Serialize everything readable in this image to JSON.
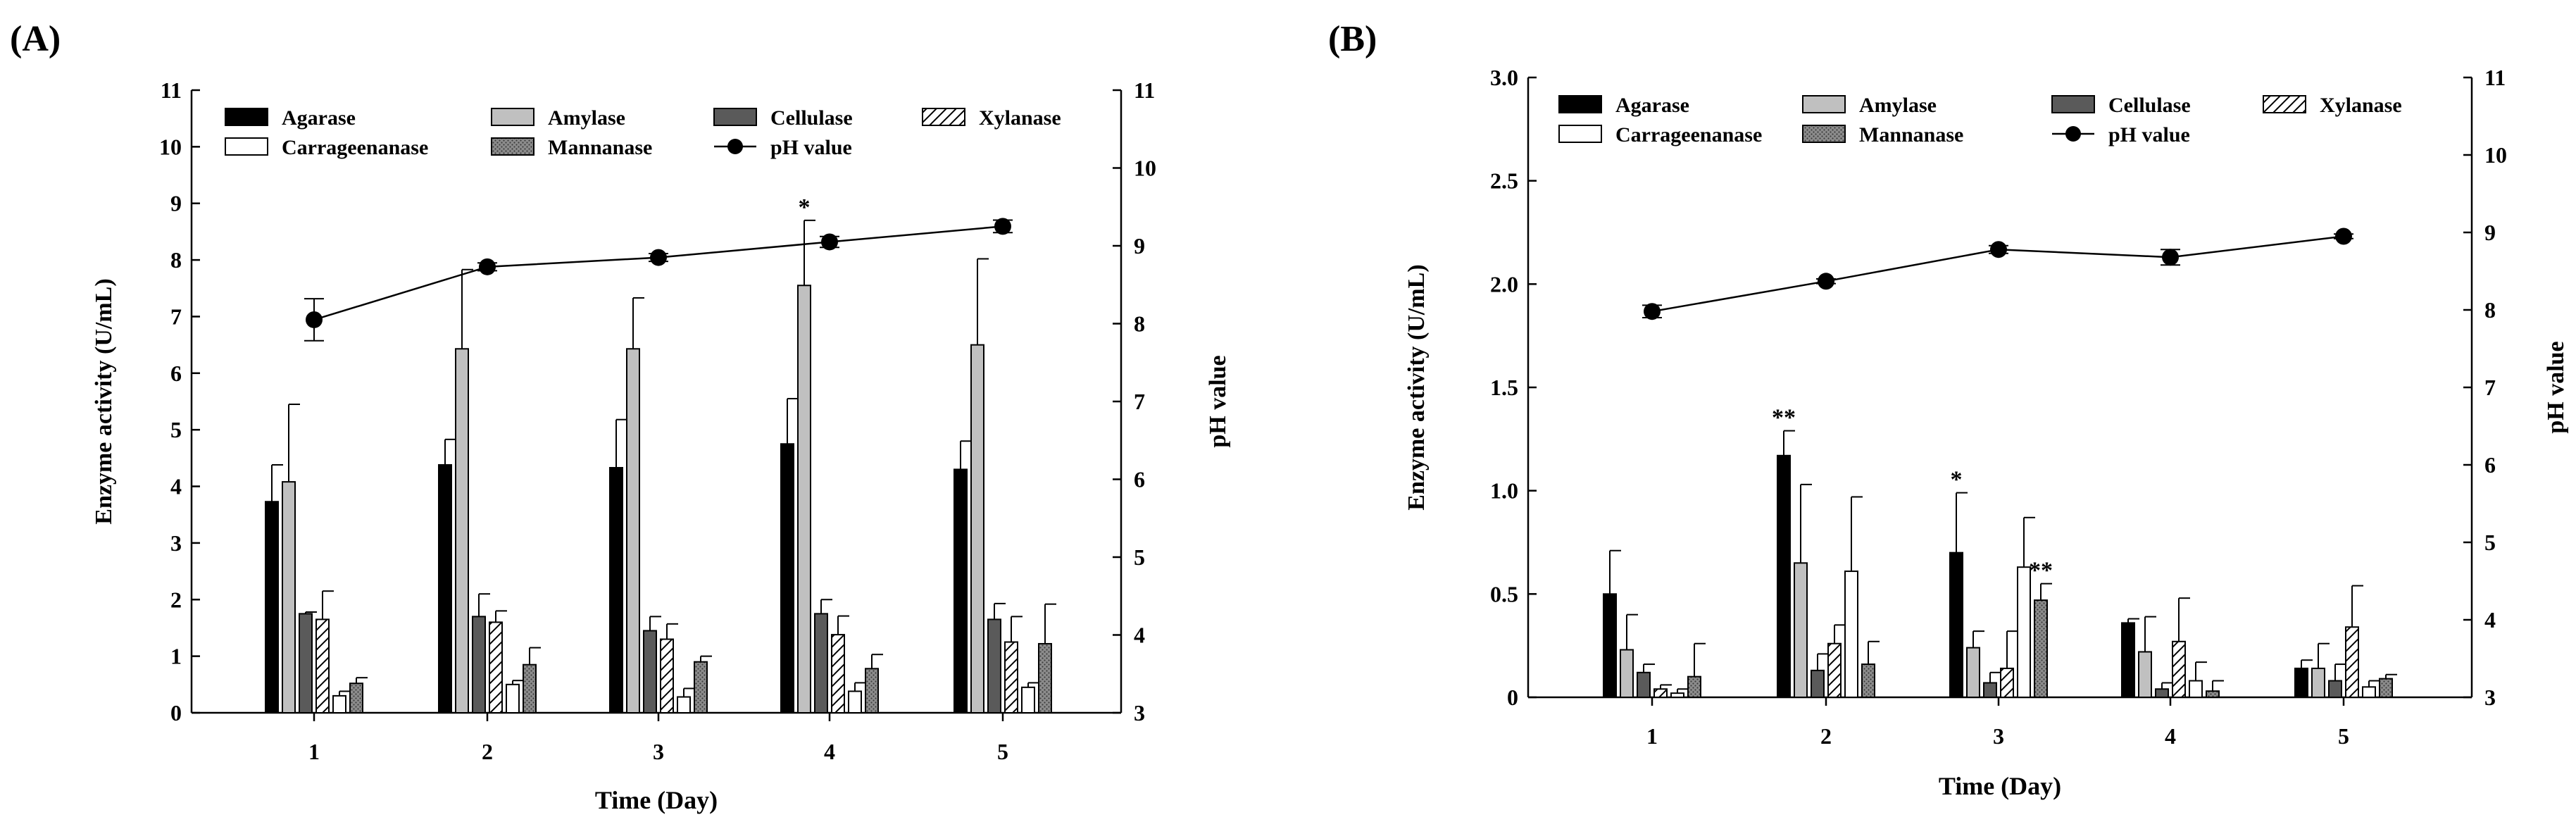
{
  "figure": {
    "colors": {
      "agarase": "#000000",
      "amylase": "#c0c0c0",
      "cellulase": "#5a5a5a",
      "carrageenanase": "#ffffff",
      "xylanase": "#ffffff",
      "mannanase": "#8c8c8c"
    }
  },
  "chart_data": [
    {
      "panel_label": "(A)",
      "type": "bar",
      "xlabel": "Time (Day)",
      "ylabel": "Enzyme activity (U/mL)",
      "y2label": "pH value",
      "categories": [
        "1",
        "2",
        "3",
        "4",
        "5"
      ],
      "ylim": [
        0,
        11
      ],
      "yticks": [
        "0",
        "1",
        "2",
        "3",
        "4",
        "5",
        "6",
        "7",
        "8",
        "9",
        "10",
        "11"
      ],
      "y2lim": [
        3,
        11
      ],
      "y2ticks": [
        "3",
        "4",
        "5",
        "6",
        "7",
        "8",
        "9",
        "10",
        "11"
      ],
      "legend_position": "top",
      "series": [
        {
          "name": "Agarase",
          "key": "agarase",
          "values": [
            3.73,
            4.38,
            4.33,
            4.75,
            4.3
          ],
          "errors": [
            0.65,
            0.45,
            0.85,
            0.8,
            0.5
          ]
        },
        {
          "name": "Amylase",
          "key": "amylase",
          "values": [
            4.08,
            6.43,
            6.43,
            7.55,
            6.5
          ],
          "errors": [
            1.37,
            1.4,
            0.9,
            1.15,
            1.52
          ]
        },
        {
          "name": "Cellulase",
          "key": "cellulase",
          "values": [
            1.75,
            1.7,
            1.45,
            1.75,
            1.65
          ],
          "errors": [
            0.03,
            0.4,
            0.25,
            0.25,
            0.28
          ]
        },
        {
          "name": "Xylanase",
          "key": "xylanase",
          "values": [
            1.65,
            1.6,
            1.3,
            1.38,
            1.25
          ],
          "errors": [
            0.5,
            0.2,
            0.27,
            0.33,
            0.45
          ]
        },
        {
          "name": "Carrageenanase",
          "key": "carrageenanase",
          "values": [
            0.3,
            0.5,
            0.28,
            0.38,
            0.45
          ],
          "errors": [
            0.08,
            0.07,
            0.15,
            0.15,
            0.08
          ]
        },
        {
          "name": "Mannanase",
          "key": "mannanase",
          "values": [
            0.52,
            0.85,
            0.9,
            0.78,
            1.22
          ],
          "errors": [
            0.1,
            0.3,
            0.1,
            0.25,
            0.7
          ]
        }
      ],
      "ph": {
        "name": "pH value",
        "values": [
          8.05,
          8.73,
          8.85,
          9.05,
          9.25
        ],
        "errors": [
          0.27,
          0.05,
          0.05,
          0.07,
          0.08
        ]
      },
      "annotations": [
        {
          "category": "4",
          "series": "Amylase",
          "text": "*"
        }
      ]
    },
    {
      "panel_label": "(B)",
      "type": "bar",
      "xlabel": "Time (Day)",
      "ylabel": "Enzyme activity (U/mL)",
      "y2label": "pH value",
      "categories": [
        "1",
        "2",
        "3",
        "4",
        "5"
      ],
      "ylim": [
        0,
        3.0
      ],
      "yticks": [
        "0",
        "0.5",
        "1.0",
        "1.5",
        "2.0",
        "2.5",
        "3.0"
      ],
      "y2lim": [
        3,
        11
      ],
      "y2ticks": [
        "3",
        "4",
        "5",
        "6",
        "7",
        "8",
        "9",
        "10",
        "11"
      ],
      "legend_position": "top",
      "series": [
        {
          "name": "Agarase",
          "key": "agarase",
          "values": [
            0.5,
            1.17,
            0.7,
            0.36,
            0.14
          ],
          "errors": [
            0.21,
            0.12,
            0.29,
            0.02,
            0.04
          ]
        },
        {
          "name": "Amylase",
          "key": "amylase",
          "values": [
            0.23,
            0.65,
            0.24,
            0.22,
            0.14
          ],
          "errors": [
            0.17,
            0.38,
            0.08,
            0.17,
            0.12
          ]
        },
        {
          "name": "Cellulase",
          "key": "cellulase",
          "values": [
            0.12,
            0.13,
            0.07,
            0.04,
            0.08
          ],
          "errors": [
            0.04,
            0.08,
            0.05,
            0.03,
            0.08
          ]
        },
        {
          "name": "Xylanase",
          "key": "xylanase",
          "values": [
            0.04,
            0.26,
            0.14,
            0.27,
            0.34
          ],
          "errors": [
            0.02,
            0.09,
            0.18,
            0.21,
            0.2
          ]
        },
        {
          "name": "Carrageenanase",
          "key": "carrageenanase",
          "values": [
            0.02,
            0.61,
            0.63,
            0.08,
            0.05
          ],
          "errors": [
            0.02,
            0.36,
            0.24,
            0.09,
            0.03
          ]
        },
        {
          "name": "Mannanase",
          "key": "mannanase",
          "values": [
            0.1,
            0.16,
            0.47,
            0.03,
            0.09
          ],
          "errors": [
            0.16,
            0.11,
            0.08,
            0.05,
            0.02
          ]
        }
      ],
      "ph": {
        "name": "pH value",
        "values": [
          7.98,
          8.37,
          8.78,
          8.68,
          8.95
        ],
        "errors": [
          0.08,
          0.03,
          0.05,
          0.1,
          0.03
        ]
      },
      "annotations": [
        {
          "category": "2",
          "series": "Agarase",
          "text": "**"
        },
        {
          "category": "3",
          "series": "Agarase",
          "text": "*"
        },
        {
          "category": "3",
          "series": "Mannanase",
          "text": "**"
        }
      ]
    }
  ]
}
